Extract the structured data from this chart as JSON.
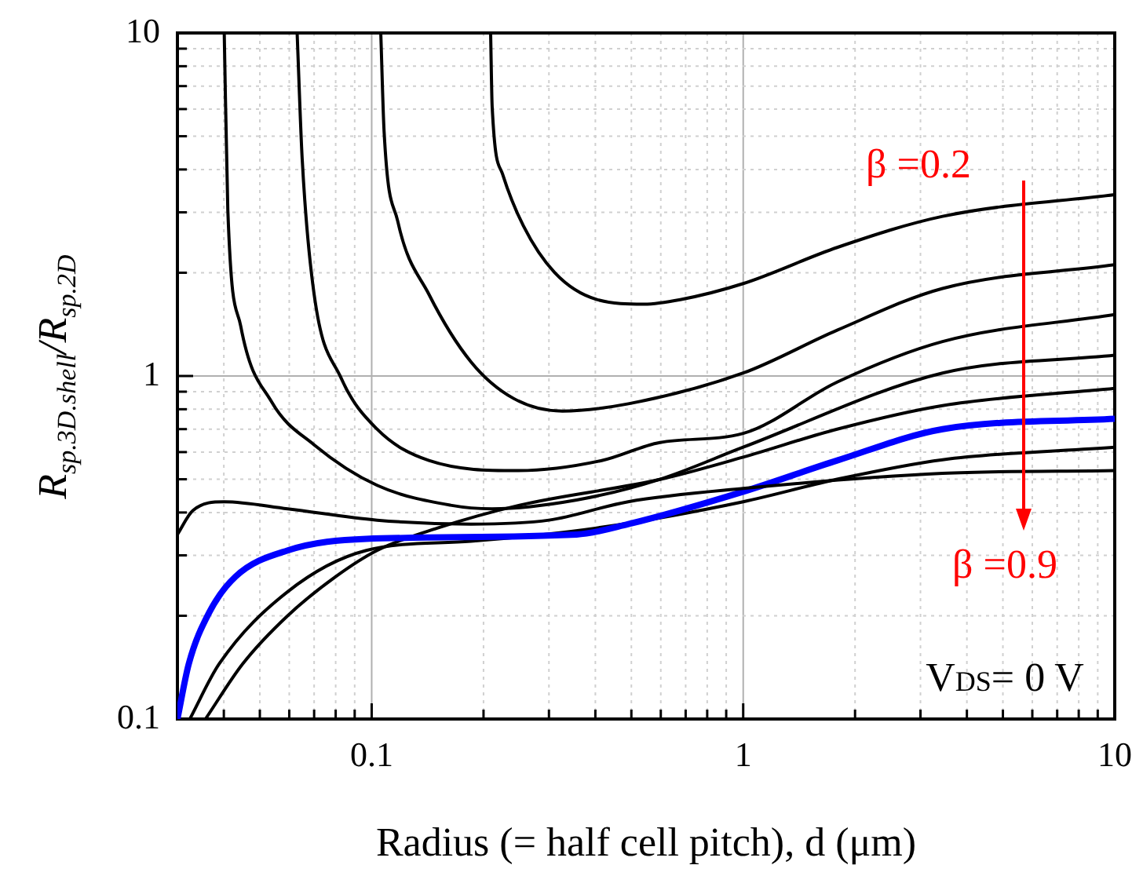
{
  "chart_data": {
    "type": "line",
    "xlabel": "Radius (= half cell pitch), d (μm)",
    "ylabel": "R$_{sp.3D.shell}$/R$_{sp.2D}$",
    "log": "xy",
    "grid": true,
    "legend": false,
    "marker": "none",
    "line_style": "solid",
    "xlim": [
      0.03,
      10
    ],
    "ylim": [
      0.1,
      10
    ],
    "xticks": [
      {
        "value": 0.03,
        "label": null
      },
      {
        "value": 0.04,
        "label": null
      },
      {
        "value": 0.05,
        "label": null
      },
      {
        "value": 0.06,
        "label": null
      },
      {
        "value": 0.07,
        "label": null
      },
      {
        "value": 0.08,
        "label": null
      },
      {
        "value": 0.09,
        "label": null
      },
      0.1,
      {
        "value": 0.2,
        "label": null
      },
      {
        "value": 0.3,
        "label": null
      },
      {
        "value": 0.4,
        "label": null
      },
      {
        "value": 0.5,
        "label": null
      },
      {
        "value": 0.6,
        "label": null
      },
      {
        "value": 0.7,
        "label": null
      },
      {
        "value": 0.8,
        "label": null
      },
      {
        "value": 0.9,
        "label": null
      },
      1,
      {
        "value": 2,
        "label": null
      },
      {
        "value": 3,
        "label": null
      },
      {
        "value": 4,
        "label": null
      },
      {
        "value": 5,
        "label": null
      },
      {
        "value": 6,
        "label": null
      },
      {
        "value": 7,
        "label": null
      },
      {
        "value": 8,
        "label": null
      },
      {
        "value": 9,
        "label": null
      },
      10
    ],
    "yticks": [
      0.1,
      {
        "value": 0.2,
        "label": null
      },
      {
        "value": 0.3,
        "label": null
      },
      {
        "value": 0.4,
        "label": null
      },
      {
        "value": 0.5,
        "label": null
      },
      {
        "value": 0.6,
        "label": null
      },
      {
        "value": 0.7,
        "label": null
      },
      {
        "value": 0.8,
        "label": null
      },
      {
        "value": 0.9,
        "label": null
      },
      1,
      {
        "value": 2,
        "label": null
      },
      {
        "value": 3,
        "label": null
      },
      {
        "value": 4,
        "label": null
      },
      {
        "value": 5,
        "label": null
      },
      {
        "value": 6,
        "label": null
      },
      {
        "value": 7,
        "label": null
      },
      {
        "value": 8,
        "label": null
      },
      {
        "value": 9,
        "label": null
      },
      10
    ],
    "annotations": [
      "β =0.2",
      "β =0.9",
      "V$_{DS}$= 0 V"
    ],
    "series": [
      {
        "color": "#000000",
        "x": [
          0.209,
          0.211,
          0.225,
          0.256,
          0.311,
          0.404,
          0.541,
          0.677,
          1,
          1.79,
          3.44,
          10
        ],
        "values": [
          10,
          6.1,
          3.88,
          2.74,
          2.0,
          1.67,
          1.62,
          1.67,
          1.86,
          2.37,
          2.92,
          3.38
        ]
      },
      {
        "color": "#000000",
        "x": [
          0.1058,
          0.108,
          0.1175,
          0.1426,
          0.185,
          0.241,
          0.326,
          0.491,
          1,
          1.79,
          3.44,
          10
        ],
        "values": [
          10,
          5.16,
          2.83,
          1.73,
          1.1,
          0.86,
          0.79,
          0.83,
          1.02,
          1.36,
          1.8,
          2.11
        ]
      },
      {
        "color": "#000000",
        "x": [
          0.063,
          0.065,
          0.07,
          0.0826,
          0.1034,
          0.1426,
          0.248,
          0.416,
          0.597,
          1,
          1.79,
          3.44,
          10
        ],
        "values": [
          10,
          4.3,
          1.73,
          0.99,
          0.7,
          0.567,
          0.53,
          0.567,
          0.64,
          0.68,
          0.96,
          1.26,
          1.51
        ]
      },
      {
        "color": "#000000",
        "x": [
          0.0401,
          0.041,
          0.0444,
          0.0538,
          0.07,
          0.1034,
          0.163,
          0.211,
          0.356,
          0.597,
          1,
          3.44,
          10
        ],
        "values": [
          10,
          3.05,
          1.4,
          0.84,
          0.63,
          0.48,
          0.42,
          0.41,
          0.435,
          0.5,
          0.62,
          1.02,
          1.15
        ]
      },
      {
        "color": "#000000",
        "x": [
          0.03,
          0.033,
          0.0401,
          0.0594,
          0.1034,
          0.185,
          0.3,
          0.49,
          1,
          3.44,
          10
        ],
        "values": [
          0.345,
          0.405,
          0.43,
          0.41,
          0.38,
          0.37,
          0.38,
          0.43,
          0.47,
          0.52,
          0.53
        ]
      },
      {
        "color": "#0000ff",
        "x": [
          0.03,
          0.0322,
          0.0365,
          0.043,
          0.0594,
          0.0967,
          0.356,
          0.491,
          1,
          1.79,
          3.44,
          10
        ],
        "values": [
          0.1,
          0.145,
          0.204,
          0.26,
          0.31,
          0.335,
          0.345,
          0.37,
          0.46,
          0.567,
          0.7,
          0.75
        ]
      },
      {
        "color": "#000000",
        "x": [
          0.0324,
          0.0389,
          0.0594,
          0.0967,
          0.185,
          0.4,
          1,
          1.79,
          3.44,
          10
        ],
        "values": [
          0.1,
          0.145,
          0.235,
          0.31,
          0.33,
          0.36,
          0.43,
          0.5,
          0.57,
          0.62
        ]
      },
      {
        "color": "#000000",
        "x": [
          0.0357,
          0.045,
          0.0594,
          0.08,
          0.1034,
          0.15,
          0.25,
          0.6,
          1,
          1.79,
          3.44,
          10
        ],
        "values": [
          0.1,
          0.145,
          0.2,
          0.26,
          0.31,
          0.36,
          0.42,
          0.5,
          0.58,
          0.7,
          0.82,
          0.92
        ]
      }
    ]
  }
}
